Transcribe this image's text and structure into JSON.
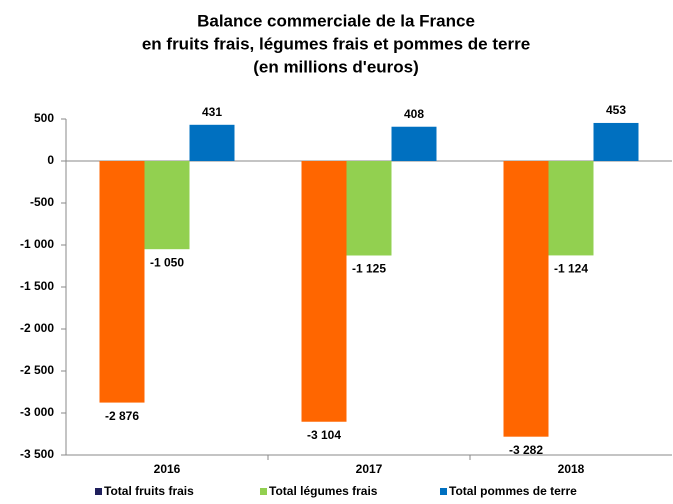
{
  "chart_data": {
    "type": "bar",
    "title": [
      "Balance commerciale de la France",
      "en fruits frais, légumes frais et pommes de terre",
      "(en millions d'euros)"
    ],
    "categories": [
      "2016",
      "2017",
      "2018"
    ],
    "series": [
      {
        "name": "Total fruits frais",
        "color": "#ff6600",
        "legend_color": "#1f1f5c",
        "values": [
          -2876,
          -3104,
          -3282
        ],
        "value_labels": [
          "-2 876",
          "-3 104",
          "-3 282"
        ]
      },
      {
        "name": "Total légumes frais",
        "color": "#92d050",
        "legend_color": "#92d050",
        "values": [
          -1050,
          -1125,
          -1124
        ],
        "value_labels": [
          "-1 050",
          "-1 125",
          "-1 124"
        ]
      },
      {
        "name": "Total pommes de terre",
        "color": "#0070c0",
        "legend_color": "#0070c0",
        "values": [
          431,
          408,
          453
        ],
        "value_labels": [
          "431",
          "408",
          "453"
        ]
      }
    ],
    "ylim": [
      -3500,
      500
    ],
    "yticks": [
      500,
      0,
      {
        "value": -500,
        "label": "-500"
      },
      {
        "value": -1000,
        "label": "-1 000"
      },
      {
        "value": -1500,
        "label": "-1 500"
      },
      {
        "value": -2000,
        "label": "-2 000"
      },
      {
        "value": -2500,
        "label": "-2 500"
      },
      {
        "value": -3000,
        "label": "-3 000"
      },
      {
        "value": -3500,
        "label": "-3 500"
      }
    ],
    "grid": false,
    "legend": "bottom"
  }
}
